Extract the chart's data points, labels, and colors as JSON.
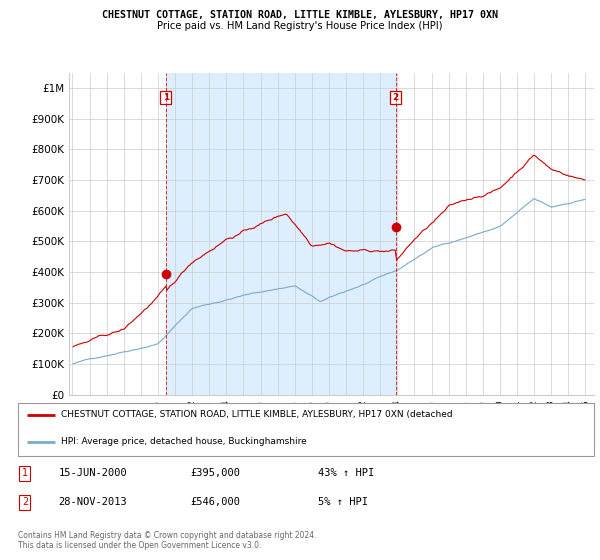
{
  "title1": "CHESTNUT COTTAGE, STATION ROAD, LITTLE KIMBLE, AYLESBURY, HP17 0XN",
  "title2": "Price paid vs. HM Land Registry's House Price Index (HPI)",
  "bg_color": "#ffffff",
  "grid_color": "#cccccc",
  "red_color": "#cc0000",
  "blue_color": "#7aaacc",
  "shade_color": "#ddeeff",
  "vline1_year": 2000.46,
  "vline2_year": 2013.91,
  "annotation1": {
    "price": 395000,
    "year": 2000.46
  },
  "annotation2": {
    "price": 546000,
    "year": 2013.91
  },
  "legend_line1": "CHESTNUT COTTAGE, STATION ROAD, LITTLE KIMBLE, AYLESBURY, HP17 0XN (detached",
  "legend_line2": "HPI: Average price, detached house, Buckinghamshire",
  "table_entries": [
    {
      "num": "1",
      "date": "15-JUN-2000",
      "price": "£395,000",
      "pct": "43% ↑ HPI"
    },
    {
      "num": "2",
      "date": "28-NOV-2013",
      "price": "£546,000",
      "pct": "5% ↑ HPI"
    }
  ],
  "footnote": "Contains HM Land Registry data © Crown copyright and database right 2024.\nThis data is licensed under the Open Government Licence v3.0.",
  "ylim": [
    0,
    1050000
  ],
  "yticks": [
    0,
    100000,
    200000,
    300000,
    400000,
    500000,
    600000,
    700000,
    800000,
    900000,
    1000000
  ],
  "ytick_labels": [
    "£0",
    "£100K",
    "£200K",
    "£300K",
    "£400K",
    "£500K",
    "£600K",
    "£700K",
    "£800K",
    "£900K",
    "£1M"
  ],
  "xlim_start": 1994.8,
  "xlim_end": 2025.5
}
